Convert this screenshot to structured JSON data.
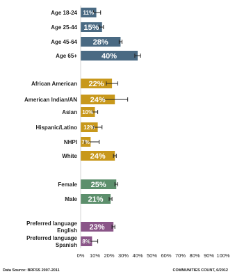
{
  "chart_data": {
    "type": "bar",
    "orientation": "horizontal",
    "categories": [
      "Age 18-24",
      "Age 25-44",
      "Age 45-64",
      "Age 65+",
      "African American",
      "American Indian/AN",
      "Asian",
      "Hispanic/Latino",
      "NHPI",
      "White",
      "Female",
      "Male",
      "Preferred language English",
      "Preferred language Spanish"
    ],
    "groups": [
      {
        "color": "#4a6a83",
        "items": [
          {
            "label": "Age 18-24",
            "value": 11,
            "label_text": "11%",
            "ci": [
              9,
              14
            ]
          },
          {
            "label": "Age 25-44",
            "value": 15,
            "label_text": "15%",
            "ci": [
              13,
              16
            ]
          },
          {
            "label": "Age 45-64",
            "value": 28,
            "label_text": "28%",
            "ci": [
              27,
              29
            ]
          },
          {
            "label": "Age 65+",
            "value": 40,
            "label_text": "40%",
            "ci": [
              38,
              42
            ]
          }
        ]
      },
      {
        "color": "#c8981b",
        "items": [
          {
            "label": "African American",
            "value": 22,
            "label_text": "22%",
            "ci": [
              18,
              26
            ]
          },
          {
            "label": "American Indian/AN",
            "value": 24,
            "label_text": "24%",
            "ci": [
              16,
              33
            ]
          },
          {
            "label": "Asian",
            "value": 10,
            "label_text": "10%",
            "ci": [
              8,
              12
            ]
          },
          {
            "label": "Hispanic/Latino",
            "value": 12,
            "label_text": "12%",
            "ci": [
              9,
              15
            ]
          },
          {
            "label": "NHPI",
            "value": 7,
            "label_text": "7%",
            "ci": [
              3,
              13
            ]
          },
          {
            "label": "White",
            "value": 24,
            "label_text": "24%",
            "ci": [
              23,
              25
            ]
          }
        ]
      },
      {
        "color": "#5c8f6c",
        "items": [
          {
            "label": "Female",
            "value": 25,
            "label_text": "25%",
            "ci": [
              24,
              26
            ]
          },
          {
            "label": "Male",
            "value": 21,
            "label_text": "21%",
            "ci": [
              20,
              22
            ]
          }
        ]
      },
      {
        "color": "#8a5588",
        "items": [
          {
            "label": "Preferred language English",
            "value": 23,
            "label_text": "23%",
            "ci": [
              22,
              24
            ]
          },
          {
            "label": "Preferred language Spanish",
            "value": 8,
            "label_text": "8%",
            "ci": [
              5,
              12
            ]
          }
        ]
      }
    ],
    "xticks": [
      "0%",
      "10%",
      "20%",
      "30%",
      "40%",
      "50%",
      "60%",
      "70%",
      "80%",
      "90%",
      "100%"
    ],
    "xlim": [
      0,
      100
    ],
    "title": "",
    "xlabel": "",
    "ylabel": "",
    "grid": false,
    "legend": "none"
  },
  "footer": {
    "source": "Data Source: BRFSS 2007-2011",
    "credit": "COMMUNITIES COUNT, 6/2012"
  }
}
